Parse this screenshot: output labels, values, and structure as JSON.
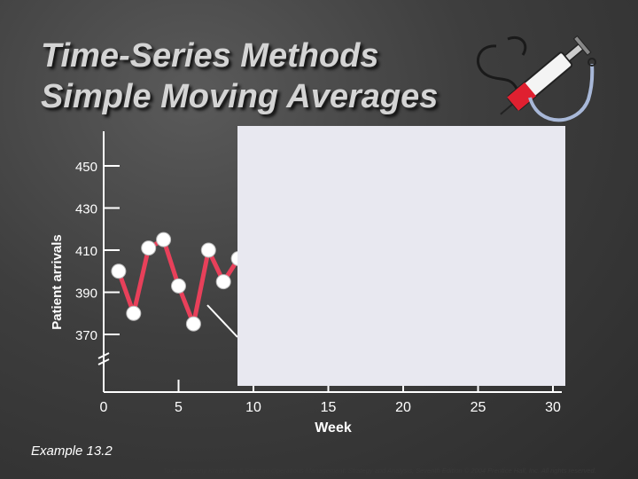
{
  "slide": {
    "title_line1": "Time-Series Methods",
    "title_line2": "Simple Moving Averages",
    "example": "Example 13.2",
    "footer": "To Accompany Krajewski & Ritzman Operations Management: Strategy and Analysis, Seventh Edition © 2004 Prentice Hall, Inc. All rights reserved."
  },
  "icons": {
    "decoration": "stethoscope-syringe-icon"
  },
  "colors": {
    "series": "#e8405a",
    "marker": "#ffffff",
    "axis": "#ffffff",
    "panel": "#e8e8f0"
  },
  "chart_data": {
    "type": "line",
    "title": "",
    "xlabel": "Week",
    "ylabel": "Patient arrivals",
    "x_ticks": [
      "0",
      "5",
      "10",
      "15",
      "20",
      "25",
      "30"
    ],
    "y_ticks": [
      "450",
      "430",
      "410",
      "390",
      "370"
    ],
    "xlim": [
      0,
      30
    ],
    "ylim": [
      370,
      450
    ],
    "axis_break": "y",
    "series": [
      {
        "x": [
          1,
          2,
          3,
          4,
          5,
          6,
          7,
          8,
          9
        ],
        "y": [
          400,
          380,
          411,
          415,
          393,
          375,
          410,
          395,
          406
        ]
      }
    ]
  }
}
